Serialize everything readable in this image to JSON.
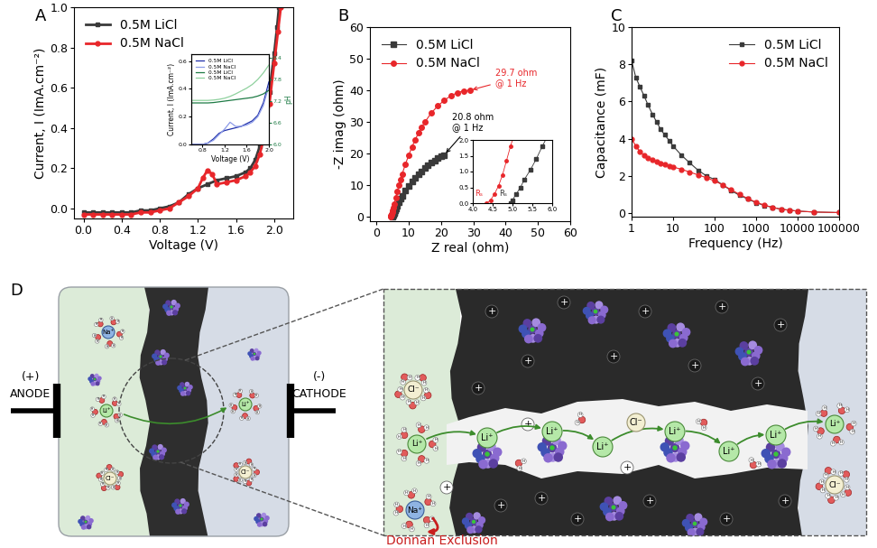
{
  "chart_data": [
    {
      "panel": "A",
      "type": "line",
      "x_label": "Voltage (V)",
      "y_label": "Current, I (ImA.cm⁻²)",
      "xlim": [
        -0.1,
        2.2
      ],
      "ylim": [
        -0.05,
        1.0
      ],
      "xticks": [
        0.0,
        0.4,
        0.8,
        1.2,
        1.6,
        2.0
      ],
      "yticks": [
        0.0,
        0.2,
        0.4,
        0.6,
        0.8,
        1.0
      ],
      "legend": "upper left",
      "series": [
        {
          "name": "0.5M LiCl",
          "color": "#3a3a3a",
          "marker": "square",
          "line_style": "solid",
          "x": [
            0.0,
            0.1,
            0.2,
            0.3,
            0.4,
            0.5,
            0.6,
            0.7,
            0.8,
            0.9,
            1.0,
            1.1,
            1.2,
            1.3,
            1.4,
            1.5,
            1.6,
            1.7,
            1.75,
            1.8,
            1.85,
            1.9,
            1.95,
            2.0,
            2.03,
            2.05
          ],
          "values": [
            -0.02,
            -0.02,
            -0.02,
            -0.02,
            -0.02,
            -0.02,
            -0.01,
            -0.01,
            0.0,
            0.01,
            0.03,
            0.07,
            0.1,
            0.12,
            0.14,
            0.15,
            0.16,
            0.18,
            0.2,
            0.24,
            0.31,
            0.42,
            0.58,
            0.77,
            0.9,
            1.0
          ]
        },
        {
          "name": "0.5M NaCl",
          "color": "#e8262a",
          "marker": "circle",
          "line_style": "solid",
          "x": [
            0.0,
            0.1,
            0.2,
            0.3,
            0.4,
            0.5,
            0.6,
            0.7,
            0.8,
            0.9,
            1.0,
            1.1,
            1.2,
            1.25,
            1.3,
            1.35,
            1.4,
            1.5,
            1.6,
            1.7,
            1.75,
            1.8,
            1.85,
            1.9,
            1.95,
            2.0,
            2.04,
            2.07
          ],
          "values": [
            -0.03,
            -0.03,
            -0.03,
            -0.03,
            -0.03,
            -0.03,
            -0.02,
            -0.02,
            -0.01,
            0.0,
            0.03,
            0.06,
            0.1,
            0.15,
            0.19,
            0.17,
            0.12,
            0.13,
            0.14,
            0.16,
            0.18,
            0.21,
            0.27,
            0.37,
            0.52,
            0.72,
            0.88,
            1.0
          ]
        }
      ],
      "inset": {
        "type": "line",
        "x_label": "Voltage (V)",
        "y_label": "Current, I (ImA.cm⁻²)",
        "y2_label": "pH",
        "xlim": [
          0.6,
          2.0
        ],
        "ylim": [
          0.0,
          0.65
        ],
        "y2lim": [
          6.0,
          8.5
        ],
        "xticks": [
          0.8,
          1.2,
          1.6,
          2.0
        ],
        "yticks": [
          0.0,
          0.2,
          0.4,
          0.6
        ],
        "y2ticks": [
          6.0,
          6.6,
          7.2,
          7.8,
          8.4
        ],
        "legend": "upper left",
        "series": [
          {
            "name": "0.5M LiCl",
            "color": "#1f2fa8",
            "line_style": "solid",
            "x": [
              0.6,
              0.8,
              0.9,
              1.0,
              1.1,
              1.2,
              1.3,
              1.4,
              1.5,
              1.6,
              1.7,
              1.8,
              1.9,
              2.0
            ],
            "values": [
              0.0,
              0.0,
              0.01,
              0.04,
              0.08,
              0.1,
              0.11,
              0.12,
              0.13,
              0.15,
              0.17,
              0.21,
              0.3,
              0.45
            ]
          },
          {
            "name": "0.5M NaCl",
            "color": "#8c9be8",
            "line_style": "solid",
            "x": [
              0.6,
              0.8,
              0.9,
              1.0,
              1.1,
              1.2,
              1.3,
              1.4,
              1.5,
              1.6,
              1.7,
              1.8,
              1.9,
              2.0
            ],
            "values": [
              0.0,
              0.0,
              0.01,
              0.03,
              0.07,
              0.11,
              0.16,
              0.13,
              0.13,
              0.14,
              0.16,
              0.2,
              0.28,
              0.42
            ]
          },
          {
            "name": "0.5M LiCl",
            "color": "#1e7b45",
            "line_style": "solid",
            "axis": "y2",
            "x": [
              0.6,
              0.8,
              0.9,
              1.0,
              1.1,
              1.2,
              1.3,
              1.4,
              1.5,
              1.6,
              1.7,
              1.8,
              1.9,
              2.0
            ],
            "values": [
              7.15,
              7.15,
              7.15,
              7.16,
              7.18,
              7.2,
              7.22,
              7.24,
              7.26,
              7.28,
              7.3,
              7.34,
              7.4,
              7.5
            ]
          },
          {
            "name": "0.5M NaCl",
            "color": "#8fd19e",
            "line_style": "solid",
            "axis": "y2",
            "x": [
              0.6,
              0.8,
              0.9,
              1.0,
              1.1,
              1.2,
              1.3,
              1.4,
              1.5,
              1.6,
              1.7,
              1.8,
              1.9,
              2.0
            ],
            "values": [
              7.22,
              7.22,
              7.22,
              7.23,
              7.25,
              7.28,
              7.33,
              7.4,
              7.48,
              7.56,
              7.66,
              7.8,
              7.98,
              8.2
            ]
          }
        ]
      }
    },
    {
      "panel": "B",
      "type": "line",
      "x_label": "Z real (ohm)",
      "y_label": "-Z imag (ohm)",
      "xlim": [
        -2,
        60
      ],
      "ylim": [
        -1.5,
        60
      ],
      "xticks": [
        0,
        10,
        20,
        30,
        40,
        50,
        60
      ],
      "yticks": [
        0,
        10,
        20,
        30,
        40,
        50,
        60
      ],
      "legend": "upper left",
      "series": [
        {
          "name": "0.5M LiCl",
          "color": "#3a3a3a",
          "marker": "square",
          "line_style": "solid",
          "x": [
            4.95,
            5.0,
            5.1,
            5.2,
            5.3,
            5.45,
            5.6,
            5.75,
            6.0,
            6.5,
            7.0,
            7.5,
            8.0,
            9.0,
            10.0,
            11.0,
            12.0,
            13.0,
            14.0,
            15.0,
            16.0,
            17.0,
            18.0,
            19.0,
            20.0,
            21.0
          ],
          "values": [
            0.0,
            0.1,
            0.3,
            0.5,
            0.75,
            1.05,
            1.4,
            1.8,
            2.4,
            3.5,
            4.6,
            5.6,
            6.6,
            8.2,
            9.7,
            11.0,
            12.2,
            13.3,
            14.3,
            15.3,
            16.2,
            17.0,
            17.8,
            18.5,
            19.1,
            19.5
          ]
        },
        {
          "name": "0.5M NaCl",
          "color": "#e8262a",
          "marker": "circle",
          "line_style": "solid",
          "x": [
            4.35,
            4.45,
            4.55,
            4.65,
            4.75,
            4.85,
            4.95,
            5.2,
            5.5,
            6.0,
            6.5,
            7.0,
            7.5,
            8.0,
            9.0,
            10.0,
            11.0,
            12.0,
            13.0,
            14.0,
            15.0,
            17.0,
            19.0,
            21.0,
            23.0,
            25.0,
            27.0,
            29.0
          ],
          "values": [
            0.0,
            0.1,
            0.3,
            0.55,
            0.9,
            1.35,
            1.8,
            2.8,
            4.0,
            6.0,
            8.0,
            10.0,
            11.8,
            13.5,
            16.6,
            19.4,
            22.0,
            24.3,
            26.4,
            28.2,
            29.9,
            32.8,
            35.0,
            36.8,
            38.2,
            39.2,
            39.8,
            40.0
          ]
        }
      ],
      "annotations": [
        {
          "text": "29.7 ohm\n@ 1 Hz",
          "x": 29.0,
          "y": 40.0,
          "color": "#e8262a"
        },
        {
          "text": "20.8 ohm\n@ 1 Hz",
          "x": 21.0,
          "y": 19.5,
          "color": "#000000"
        }
      ],
      "inset": {
        "xlim": [
          4.0,
          6.0
        ],
        "ylim": [
          0.0,
          2.0
        ],
        "xticks": [
          4.0,
          4.5,
          5.0,
          5.5,
          6.0
        ],
        "yticks": [
          0.0,
          0.5,
          1.0,
          1.5,
          2.0
        ],
        "annotations": [
          {
            "text": "Rₛ",
            "x": 4.35,
            "y": 0.0,
            "color": "#e8262a"
          },
          {
            "text": "Rₛ",
            "x": 4.95,
            "y": 0.0,
            "color": "#3a3a3a"
          }
        ]
      }
    },
    {
      "panel": "C",
      "type": "line",
      "log": "x",
      "x_label": "Frequency (Hz)",
      "y_label": "Capacitance (mF)",
      "xlim": [
        1,
        100000
      ],
      "ylim": [
        -0.2,
        10
      ],
      "xticks": [
        1,
        10,
        100,
        1000,
        10000,
        100000
      ],
      "yticks": [
        0,
        2,
        4,
        6,
        8,
        10
      ],
      "legend": "upper right",
      "series": [
        {
          "name": "0.5M LiCl",
          "color": "#3a3a3a",
          "marker": "square",
          "line_style": "solid",
          "x": [
            1,
            1.26,
            1.58,
            2,
            2.5,
            3.2,
            4,
            5,
            6.3,
            8,
            10,
            16,
            25,
            40,
            63,
            100,
            160,
            250,
            400,
            630,
            1000,
            1600,
            2500,
            4000,
            6300,
            10000,
            25000,
            100000
          ],
          "values": [
            8.2,
            7.3,
            6.8,
            6.3,
            5.8,
            5.3,
            4.9,
            4.5,
            4.2,
            3.9,
            3.6,
            3.1,
            2.7,
            2.3,
            2.0,
            1.8,
            1.5,
            1.2,
            0.95,
            0.75,
            0.55,
            0.4,
            0.3,
            0.2,
            0.15,
            0.1,
            0.05,
            0.02
          ]
        },
        {
          "name": "0.5M NaCl",
          "color": "#e8262a",
          "marker": "circle",
          "line_style": "solid",
          "x": [
            1,
            1.26,
            1.58,
            2,
            2.5,
            3.2,
            4,
            5,
            6.3,
            8,
            10,
            16,
            25,
            40,
            63,
            100,
            160,
            250,
            400,
            630,
            1000,
            1600,
            2500,
            4000,
            6300,
            10000,
            25000,
            100000
          ],
          "values": [
            4.0,
            3.6,
            3.3,
            3.1,
            2.95,
            2.85,
            2.75,
            2.68,
            2.6,
            2.53,
            2.47,
            2.35,
            2.2,
            2.05,
            1.9,
            1.72,
            1.5,
            1.25,
            1.0,
            0.78,
            0.58,
            0.42,
            0.3,
            0.2,
            0.15,
            0.1,
            0.05,
            0.02
          ]
        }
      ]
    }
  ],
  "diagram": {
    "panel": "D",
    "anode": {
      "sign": "(+)",
      "label": "ANODE"
    },
    "cathode": {
      "sign": "(-)",
      "label": "CATHODE"
    },
    "ions": {
      "lithium": "Li⁺",
      "sodium": "Na⁺",
      "chloride": "Cl⁻"
    },
    "water": {
      "hydrogen": "H"
    },
    "fixed_charge": "+",
    "annotation": "Donnan Exclusion"
  }
}
